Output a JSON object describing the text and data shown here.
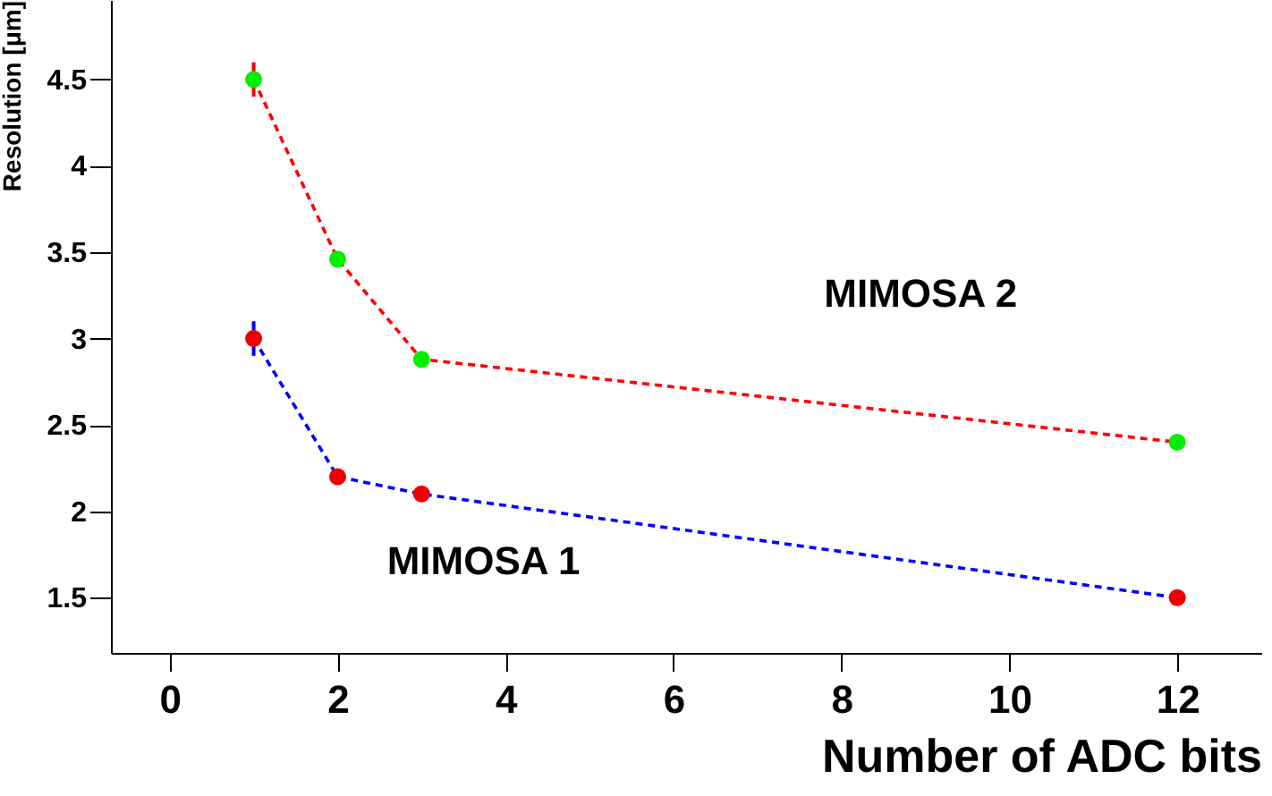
{
  "chart_data": {
    "type": "line",
    "xlabel": "Number of ADC bits",
    "ylabel": "Resolution [μm]",
    "x": [
      1,
      2,
      3,
      12
    ],
    "series": [
      {
        "name": "MIMOSA 2",
        "color": "#ff0000",
        "colors": [
          "#00ee00",
          "#00ee00",
          "#00ee00",
          "#00ee00"
        ],
        "values": [
          4.5,
          3.46,
          2.88,
          2.4
        ],
        "errors": [
          0.1,
          0.03,
          null,
          null
        ]
      },
      {
        "name": "MIMOSA 1",
        "color": "#0000ff",
        "colors": [
          "#ee0000",
          "#ee0000",
          "#ee0000",
          "#ee0000"
        ],
        "values": [
          3.0,
          2.2,
          2.1,
          1.5
        ],
        "errors": [
          0.1,
          0.03,
          null,
          null
        ]
      }
    ],
    "xlim": [
      -0.7,
      13
    ],
    "xticks": [
      0,
      2,
      4,
      6,
      8,
      10,
      12
    ],
    "ylim": [
      1.18,
      4.96
    ],
    "yticks": [
      1.5,
      2,
      2.5,
      3,
      3.5,
      4,
      4.5
    ],
    "grid": false,
    "marker": "circle",
    "line_style": "dashed"
  }
}
